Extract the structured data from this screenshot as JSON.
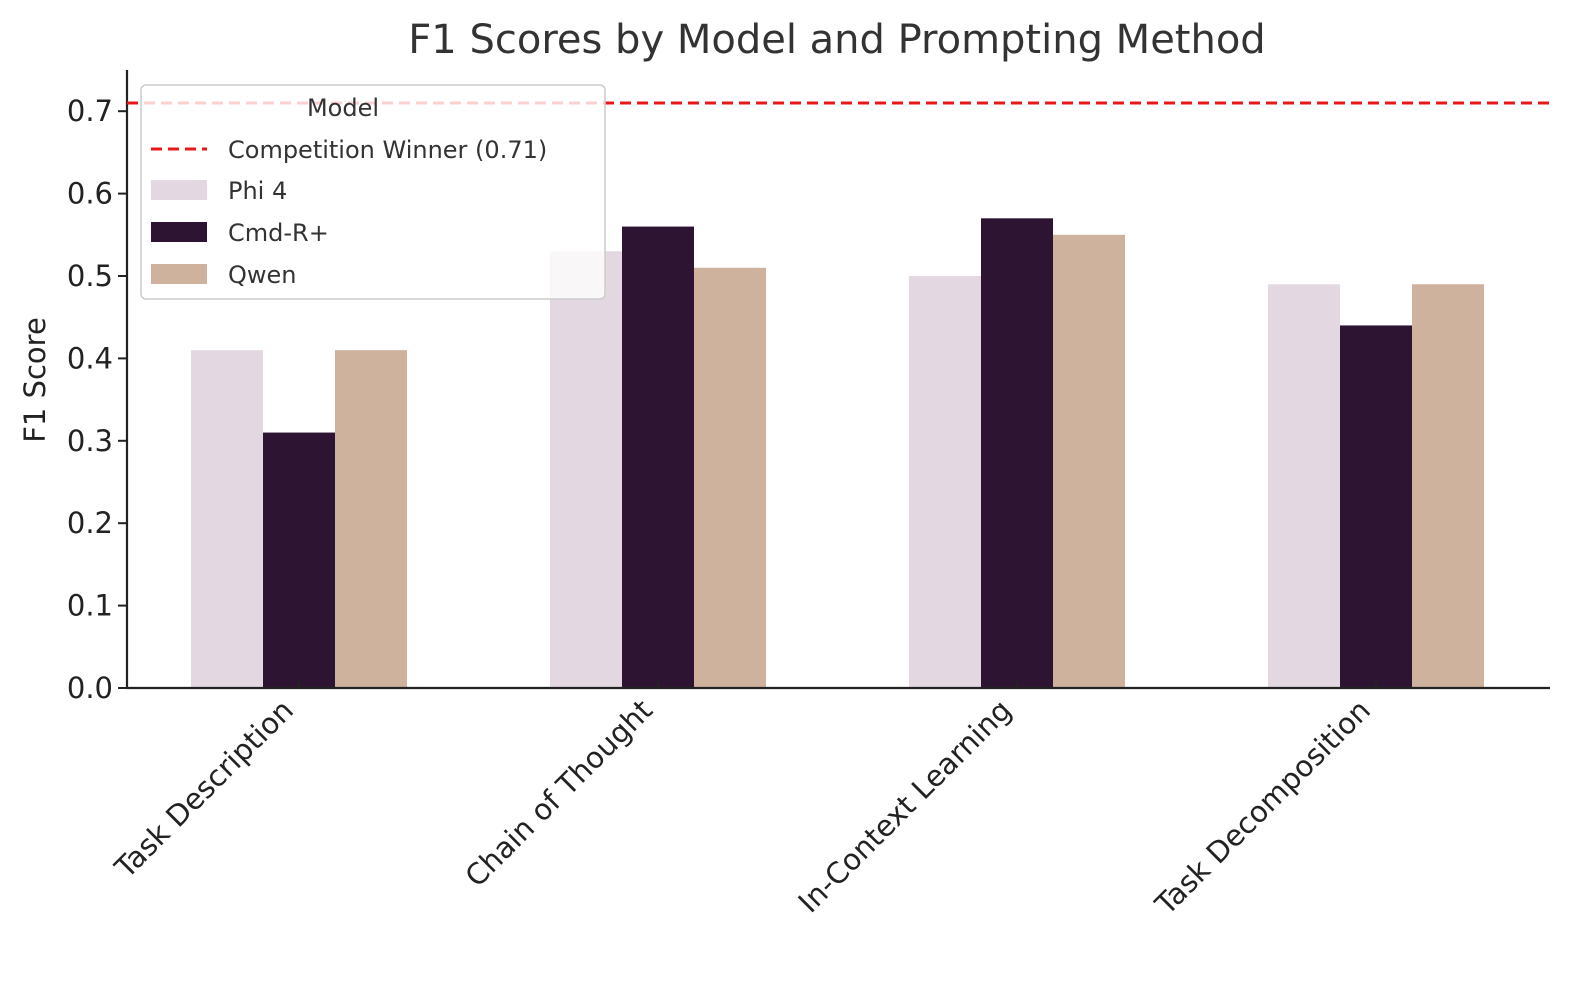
{
  "chart_data": {
    "type": "bar",
    "title": "F1 Scores by Model and Prompting Method",
    "xlabel": "",
    "ylabel": "F1 Score",
    "ylim": [
      0,
      0.75
    ],
    "yticks": [
      "0.0",
      "0.1",
      "0.2",
      "0.3",
      "0.4",
      "0.5",
      "0.6",
      "0.7"
    ],
    "grid": false,
    "categories": [
      "Task Description",
      "Chain of Thought",
      "In-Context Learning",
      "Task Decomposition"
    ],
    "series": [
      {
        "name": "Phi 4",
        "color": "#e3d8e2",
        "values": [
          0.41,
          0.53,
          0.5,
          0.49
        ]
      },
      {
        "name": "Cmd-R+",
        "color": "#2e1433",
        "values": [
          0.31,
          0.56,
          0.57,
          0.44
        ]
      },
      {
        "name": "Qwen",
        "color": "#cfb29e",
        "values": [
          0.41,
          0.51,
          0.55,
          0.49
        ]
      }
    ],
    "reference_line": {
      "label": "Competition Winner (0.71)",
      "value": 0.71,
      "color": "#e8171a",
      "style": "dashed"
    },
    "legend": {
      "title": "Model",
      "position": "top-left"
    }
  }
}
